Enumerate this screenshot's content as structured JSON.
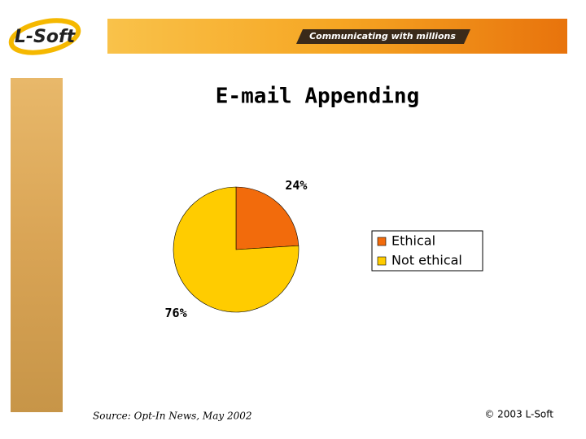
{
  "header": {
    "logo": "L-Soft",
    "tagline": "Communicating with millions"
  },
  "chart_data": {
    "type": "pie",
    "title": "E-mail Appending",
    "categories": [
      "Ethical",
      "Not ethical"
    ],
    "values": [
      24,
      76
    ],
    "value_labels": [
      "24%",
      "76%"
    ],
    "colors": [
      "#f26b0c",
      "#ffcc00"
    ],
    "legend": "right"
  },
  "footer": {
    "source": "Source: Opt-In News, May 2002",
    "copyright": "© 2003 L-Soft"
  }
}
